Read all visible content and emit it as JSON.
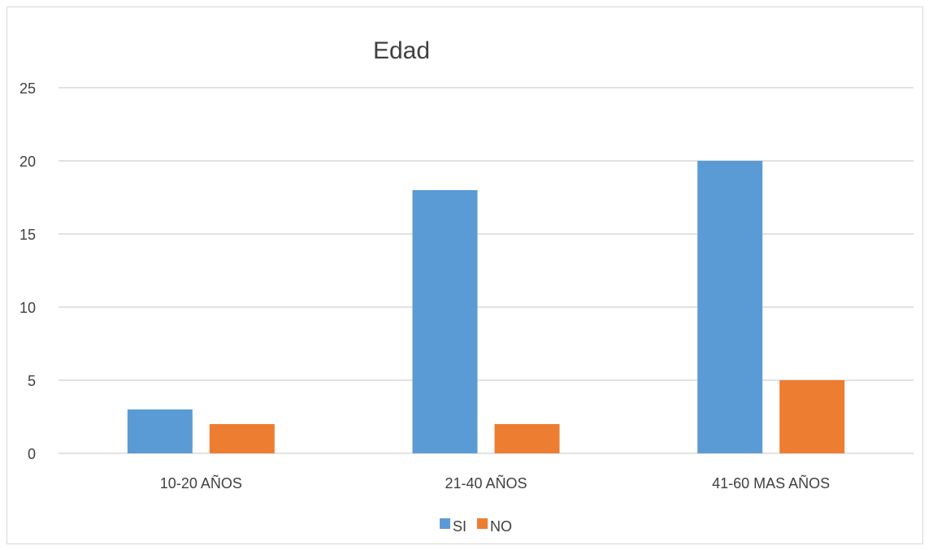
{
  "chart_data": {
    "type": "bar",
    "title": "Edad",
    "categories": [
      "10-20 AÑOS",
      "21-40 AÑOS",
      "41-60 MAS AÑOS"
    ],
    "series": [
      {
        "name": "SI",
        "values": [
          3,
          18,
          20
        ],
        "color": "#5b9bd5"
      },
      {
        "name": "NO",
        "values": [
          2,
          2,
          5
        ],
        "color": "#ed7d31"
      }
    ],
    "ylim": [
      0,
      25
    ],
    "yticks": [
      "0",
      "5",
      "10",
      "15",
      "20",
      "25"
    ],
    "grid": true,
    "legend": "bottom"
  }
}
